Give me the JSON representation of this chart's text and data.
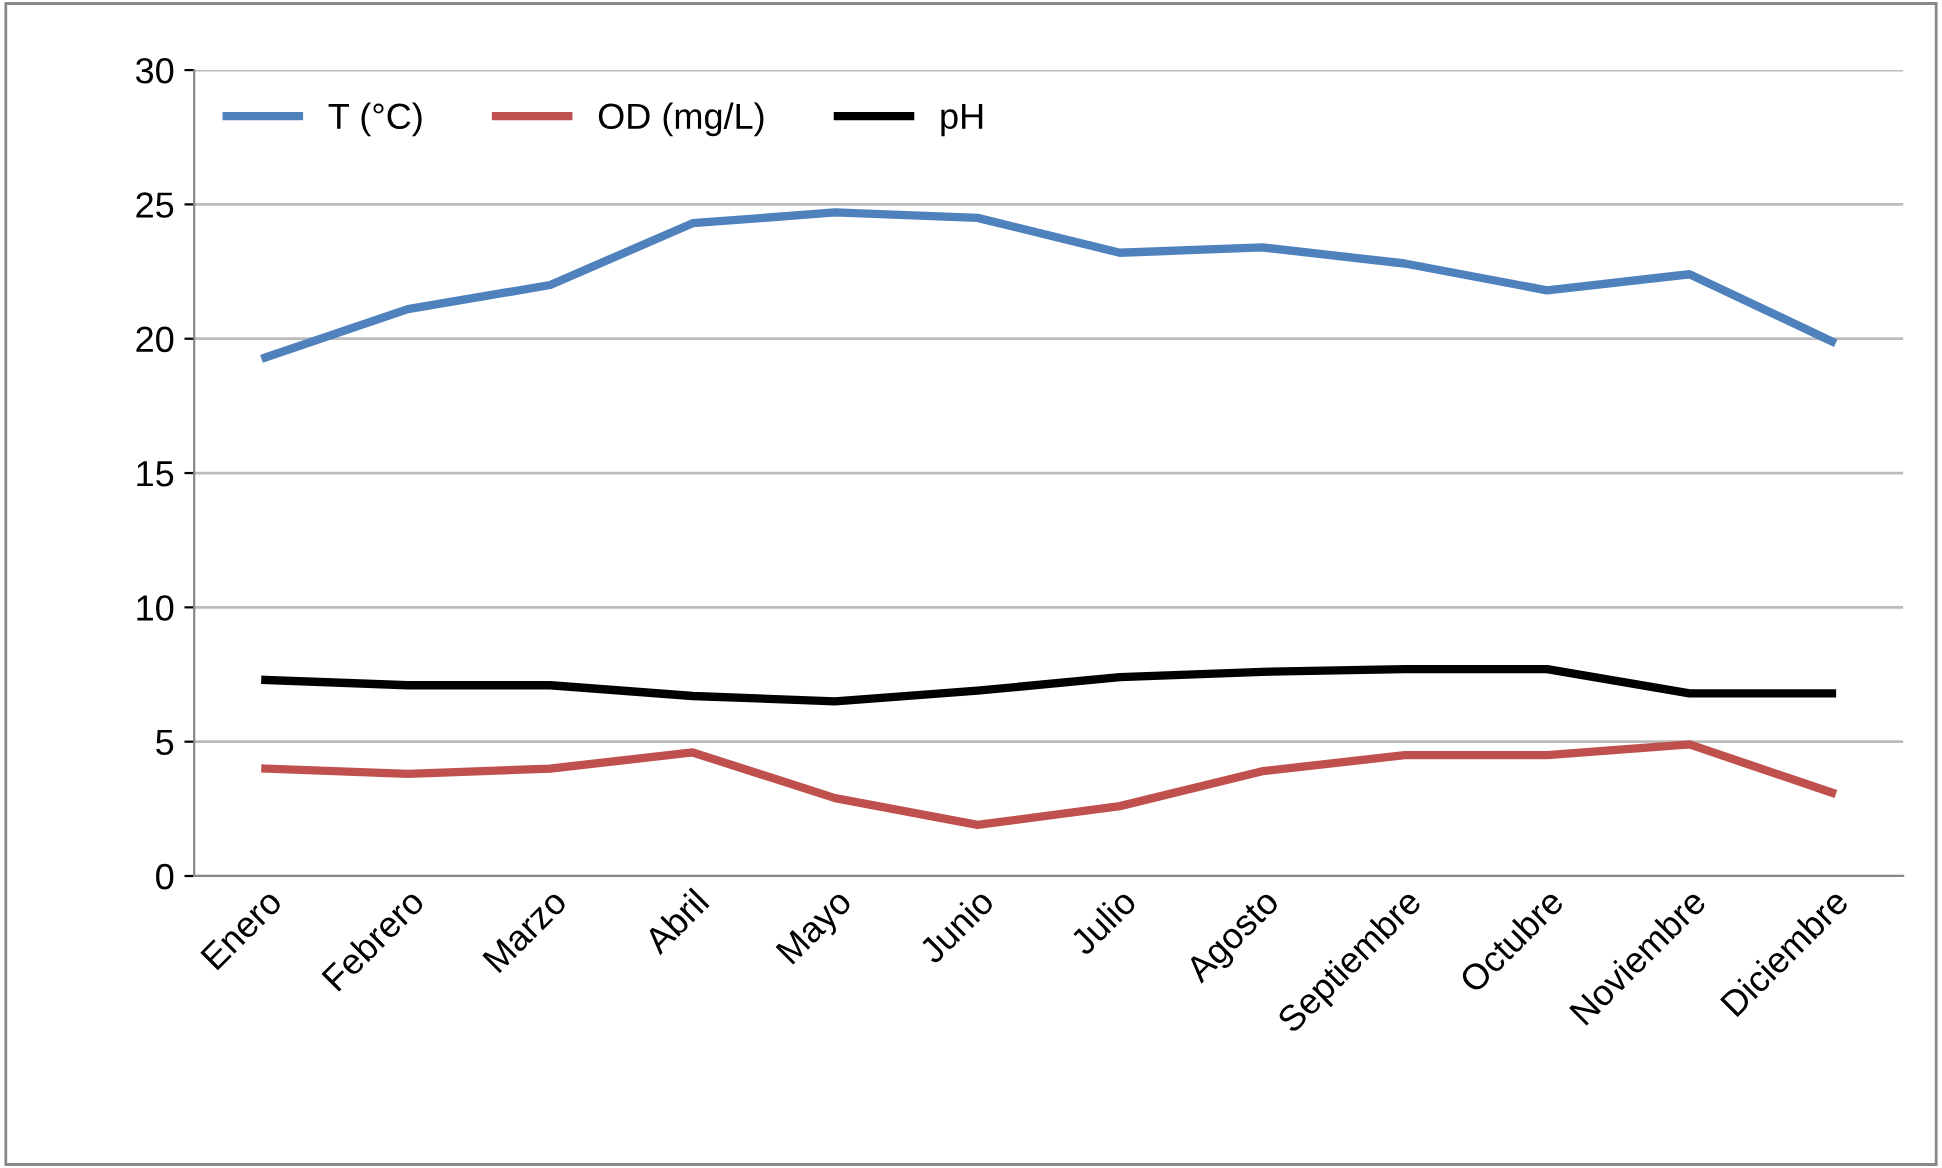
{
  "chart_data": {
    "type": "line",
    "categories": [
      "Enero",
      "Febrero",
      "Marzo",
      "Abril",
      "Mayo",
      "Junio",
      "Julio",
      "Agosto",
      "Septiembre",
      "Octubre",
      "Noviembre",
      "Diciembre"
    ],
    "series": [
      {
        "name": "T (°C)",
        "color": "#4f81bd",
        "values": [
          19.3,
          21.1,
          22.0,
          24.3,
          24.7,
          24.5,
          23.2,
          23.4,
          22.8,
          21.8,
          22.4,
          19.9
        ]
      },
      {
        "name": "OD (mg/L)",
        "color": "#c0504d",
        "values": [
          4.0,
          3.8,
          4.0,
          4.6,
          2.9,
          1.9,
          2.6,
          3.9,
          4.5,
          4.5,
          4.9,
          3.1
        ]
      },
      {
        "name": "pH",
        "color": "#000000",
        "values": [
          7.3,
          7.1,
          7.1,
          6.7,
          6.5,
          6.9,
          7.4,
          7.6,
          7.7,
          7.7,
          6.8,
          6.8
        ]
      }
    ],
    "ylim": [
      0,
      30
    ],
    "yticks": [
      0,
      5,
      10,
      15,
      20,
      25,
      30
    ],
    "grid": "y",
    "legend": "top left",
    "marker": "none",
    "line_style": "solid"
  }
}
